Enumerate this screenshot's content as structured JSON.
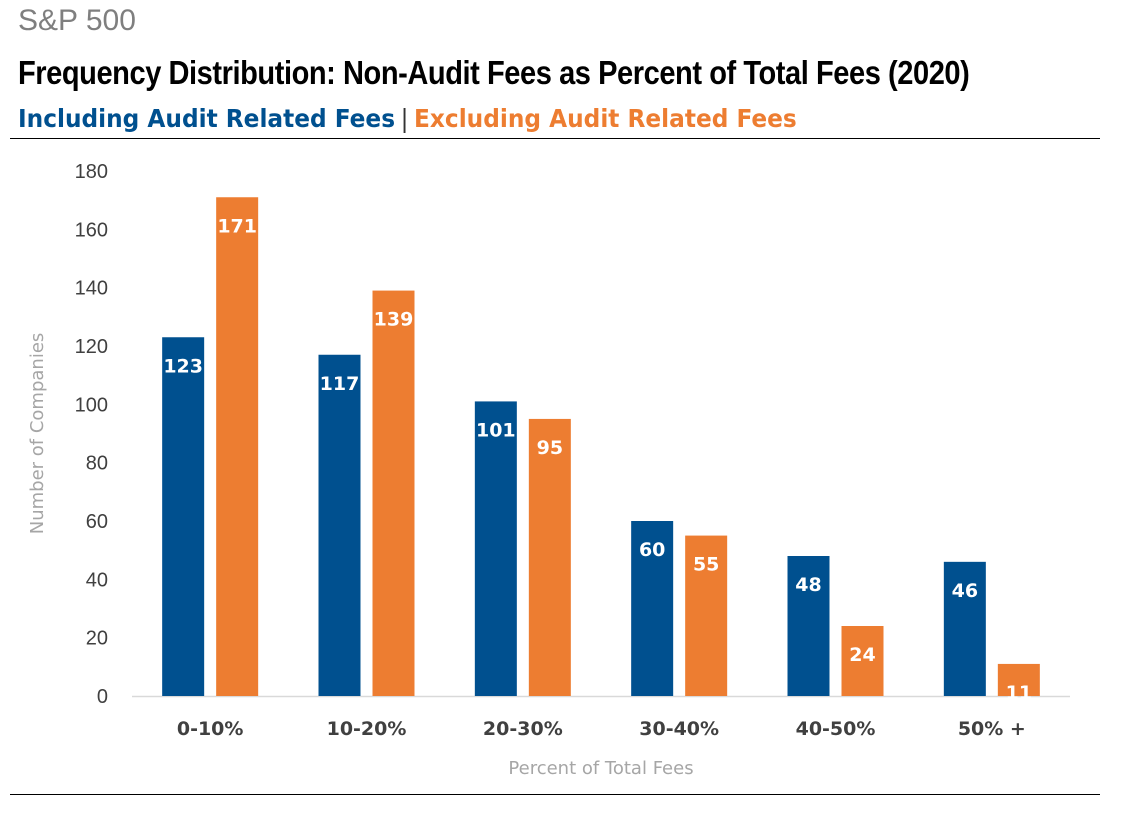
{
  "chart_data": {
    "type": "bar",
    "supertitle": "S&P 500",
    "title": "Frequency Distribution: Non-Audit Fees as Percent of Total Fees (2020)",
    "legend_separator": "|",
    "categories": [
      "0-10%",
      "10-20%",
      "20-30%",
      "30-40%",
      "40-50%",
      "50% +"
    ],
    "series": [
      {
        "name": "Including Audit Related Fees",
        "color": "#00508f",
        "values": [
          123,
          117,
          101,
          60,
          48,
          46
        ]
      },
      {
        "name": "Excluding Audit Related Fees",
        "color": "#ed7d31",
        "values": [
          171,
          139,
          95,
          55,
          24,
          11
        ]
      }
    ],
    "xlabel": "Percent of Total Fees",
    "ylabel": "Number of Companies",
    "ylim": [
      0,
      180
    ],
    "yticks": [
      "0",
      "20",
      "40",
      "60",
      "80",
      "100",
      "120",
      "140",
      "160",
      "180"
    ],
    "yticks_values": [
      0,
      20,
      40,
      60,
      80,
      100,
      120,
      140,
      160,
      180
    ],
    "grid": false,
    "legend_position": "top-left"
  }
}
